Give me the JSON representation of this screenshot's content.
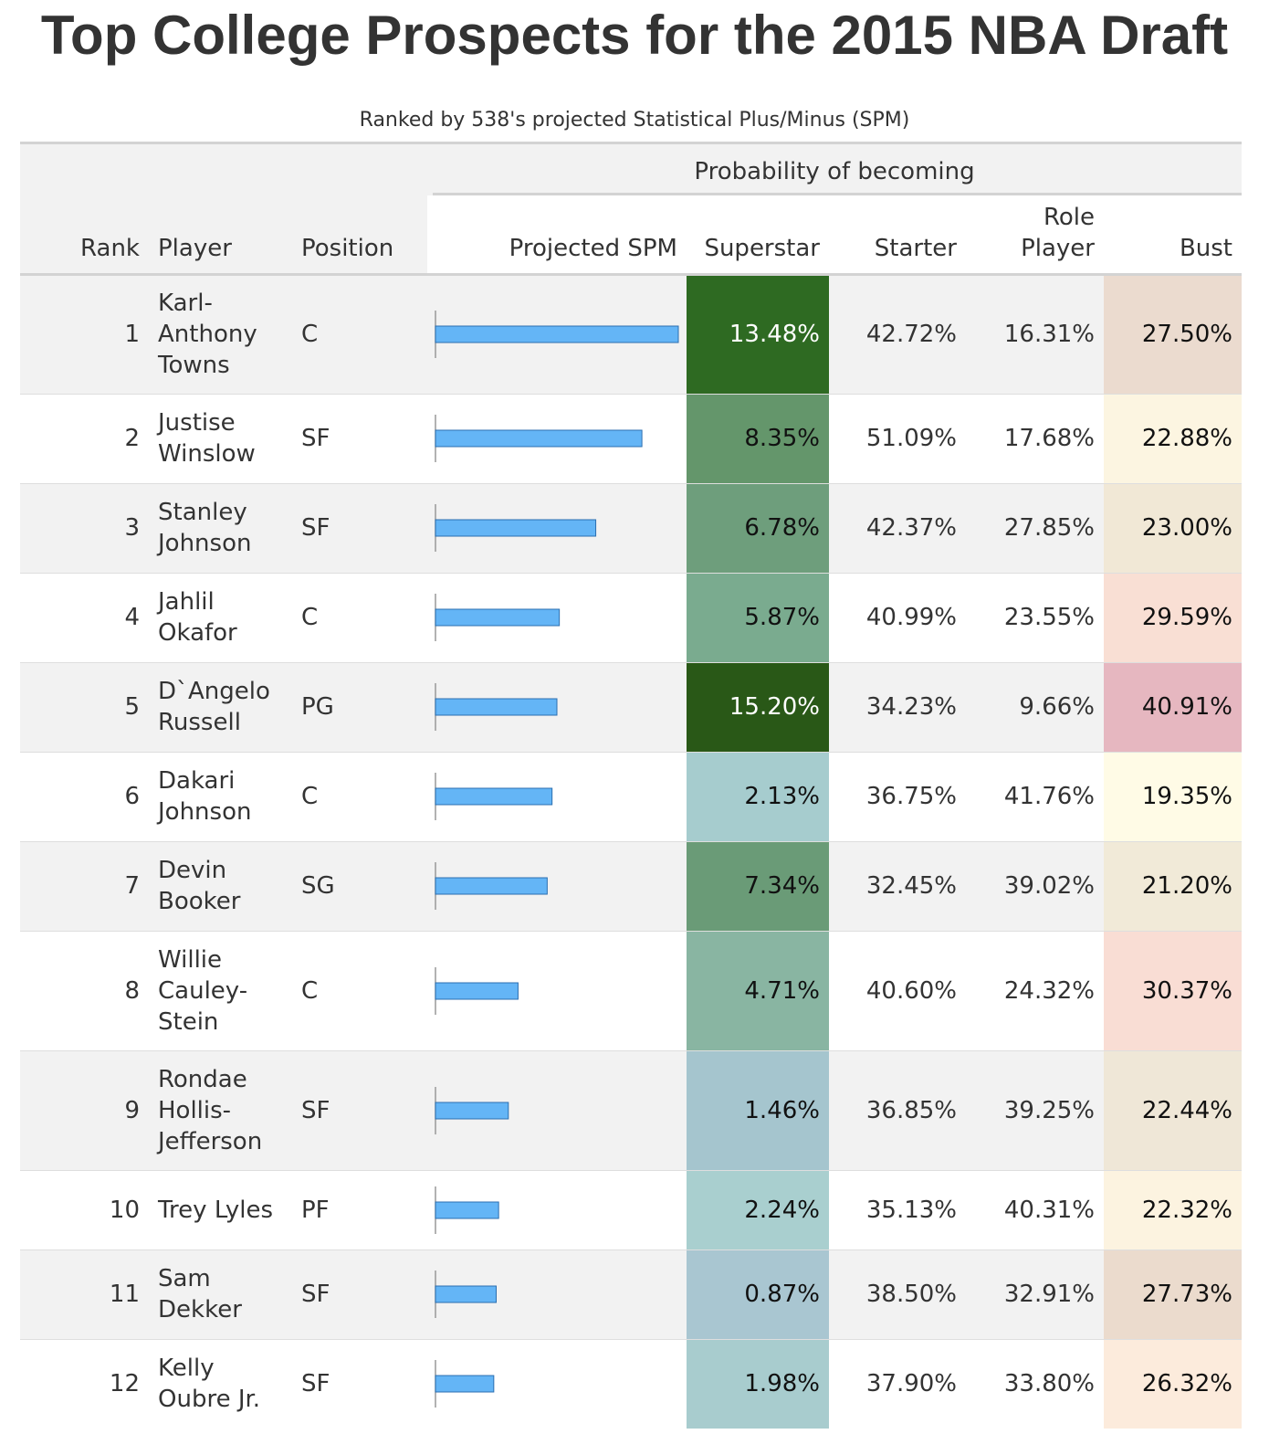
{
  "title": "Top College Prospects for the 2015 NBA Draft",
  "subtitle": "Ranked by 538's projected Statistical Plus/Minus (SPM)",
  "spanner_label": "Probability of becoming",
  "columns": {
    "rank": "Rank",
    "player": "Player",
    "position": "Position",
    "spm": "Projected SPM",
    "superstar": "Superstar",
    "starter": "Starter",
    "role_player": "Role Player",
    "bust": "Bust"
  },
  "colors": {
    "bar": "#64b5f6",
    "bar_stroke": "#2c6fb0",
    "axis": "#999999"
  },
  "chart_data": {
    "type": "table",
    "title": "Top College Prospects for the 2015 NBA Draft",
    "subtitle": "Ranked by 538's projected Statistical Plus/Minus (SPM)",
    "bar_column": "Projected SPM",
    "bar_range": [
      0,
      1
    ],
    "rows": [
      {
        "rank": "1",
        "player": "Karl-Anthony Towns",
        "position": "C",
        "spm": 1.0,
        "superstar": "13.48%",
        "starter": "42.72%",
        "role_player": "16.31%",
        "bust": "27.50%",
        "superstar_bg": "#2e6a22",
        "superstar_fg": "#ffffff",
        "bust_bg": "#ebdbcf"
      },
      {
        "rank": "2",
        "player": "Justise Winslow",
        "position": "SF",
        "spm": 0.85,
        "superstar": "8.35%",
        "starter": "51.09%",
        "role_player": "17.68%",
        "bust": "22.88%",
        "superstar_bg": "#64966b",
        "superstar_fg": "#111111",
        "bust_bg": "#fcf5e1"
      },
      {
        "rank": "3",
        "player": "Stanley Johnson",
        "position": "SF",
        "spm": 0.66,
        "superstar": "6.78%",
        "starter": "42.37%",
        "role_player": "27.85%",
        "bust": "23.00%",
        "superstar_bg": "#6e9e7c",
        "superstar_fg": "#111111",
        "bust_bg": "#f1e8d6"
      },
      {
        "rank": "4",
        "player": "Jahlil Okafor",
        "position": "C",
        "spm": 0.51,
        "superstar": "5.87%",
        "starter": "40.99%",
        "role_player": "23.55%",
        "bust": "29.59%",
        "superstar_bg": "#7aab8f",
        "superstar_fg": "#111111",
        "bust_bg": "#f9dfd4"
      },
      {
        "rank": "5",
        "player": "D`Angelo Russell",
        "position": "PG",
        "spm": 0.5,
        "superstar": "15.20%",
        "starter": "34.23%",
        "role_player": "9.66%",
        "bust": "40.91%",
        "superstar_bg": "#295817",
        "superstar_fg": "#ffffff",
        "bust_bg": "#e6b7c0"
      },
      {
        "rank": "6",
        "player": "Dakari Johnson",
        "position": "C",
        "spm": 0.48,
        "superstar": "2.13%",
        "starter": "36.75%",
        "role_player": "41.76%",
        "bust": "19.35%",
        "superstar_bg": "#a6ccce",
        "superstar_fg": "#111111",
        "bust_bg": "#fffbe6"
      },
      {
        "rank": "7",
        "player": "Devin Booker",
        "position": "SG",
        "spm": 0.46,
        "superstar": "7.34%",
        "starter": "32.45%",
        "role_player": "39.02%",
        "bust": "21.20%",
        "superstar_bg": "#6a9b77",
        "superstar_fg": "#111111",
        "bust_bg": "#f1ead8"
      },
      {
        "rank": "8",
        "player": "Willie Cauley-Stein",
        "position": "C",
        "spm": 0.34,
        "superstar": "4.71%",
        "starter": "40.60%",
        "role_player": "24.32%",
        "bust": "30.37%",
        "superstar_bg": "#89b5a2",
        "superstar_fg": "#111111",
        "bust_bg": "#f9ddd4"
      },
      {
        "rank": "9",
        "player": "Rondae Hollis-Jefferson",
        "position": "SF",
        "spm": 0.3,
        "superstar": "1.46%",
        "starter": "36.85%",
        "role_player": "39.25%",
        "bust": "22.44%",
        "superstar_bg": "#a5c5ce",
        "superstar_fg": "#111111",
        "bust_bg": "#efe7d7"
      },
      {
        "rank": "10",
        "player": "Trey Lyles",
        "position": "PF",
        "spm": 0.26,
        "superstar": "2.24%",
        "starter": "35.13%",
        "role_player": "40.31%",
        "bust": "22.32%",
        "superstar_bg": "#a9cfcf",
        "superstar_fg": "#111111",
        "bust_bg": "#fcf3e0"
      },
      {
        "rank": "11",
        "player": "Sam Dekker",
        "position": "SF",
        "spm": 0.25,
        "superstar": "0.87%",
        "starter": "38.50%",
        "role_player": "32.91%",
        "bust": "27.73%",
        "superstar_bg": "#a9c6d1",
        "superstar_fg": "#111111",
        "bust_bg": "#ebdbcd"
      },
      {
        "rank": "12",
        "player": "Kelly Oubre Jr.",
        "position": "SF",
        "spm": 0.24,
        "superstar": "1.98%",
        "starter": "37.90%",
        "role_player": "33.80%",
        "bust": "26.32%",
        "superstar_bg": "#a8ccce",
        "superstar_fg": "#111111",
        "bust_bg": "#fcebdc"
      }
    ]
  }
}
